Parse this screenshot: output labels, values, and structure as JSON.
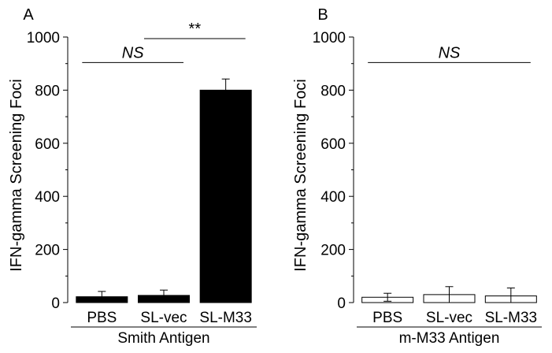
{
  "chart_data": [
    {
      "type": "bar",
      "panel_label": "A",
      "ylabel": "IFN-gamma Screening Foci",
      "xlabel": "Smith Antigen",
      "categories": [
        "PBS",
        "SL-vec",
        "SL-M33"
      ],
      "values": [
        22,
        27,
        800
      ],
      "errors": [
        20,
        20,
        42
      ],
      "bar_fill": "#000000",
      "ylim": [
        0,
        1000
      ],
      "yticks": [
        0,
        200,
        400,
        600,
        800,
        1000
      ],
      "grid": false,
      "annotations": [
        {
          "text": "NS",
          "from": 0,
          "to": 1,
          "y": 910
        },
        {
          "text": "**",
          "from": 1,
          "to": 2,
          "y": 1000
        }
      ]
    },
    {
      "type": "bar",
      "panel_label": "B",
      "ylabel": "IFN-gamma Screening Foci",
      "xlabel": "m-M33 Antigen",
      "categories": [
        "PBS",
        "SL-vec",
        "SL-M33"
      ],
      "values": [
        20,
        30,
        25
      ],
      "errors": [
        15,
        30,
        30
      ],
      "bar_fill": "#ffffff",
      "ylim": [
        0,
        1000
      ],
      "yticks": [
        0,
        200,
        400,
        600,
        800,
        1000
      ],
      "grid": false,
      "annotations": [
        {
          "text": "NS",
          "from": 0,
          "to": 2,
          "y": 910
        }
      ]
    }
  ]
}
